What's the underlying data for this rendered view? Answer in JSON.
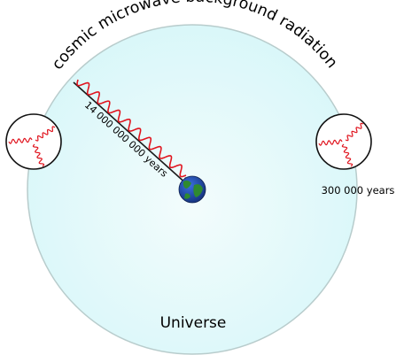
{
  "diagram": {
    "arc_label": "cosmic microwave background radiation",
    "distance_label": "14 000 000 000 years",
    "inset_label": "300 000 years",
    "universe_label": "Universe"
  },
  "colors": {
    "universe_fill_center": "#f3fcfc",
    "universe_fill_edge": "#d9f7f9",
    "universe_stroke": "#b8cccc",
    "wave": "#e0141e",
    "arrow": "#1a1a1a",
    "earth_ocean": "#1f4fbf",
    "earth_land": "#2f8a2f"
  }
}
